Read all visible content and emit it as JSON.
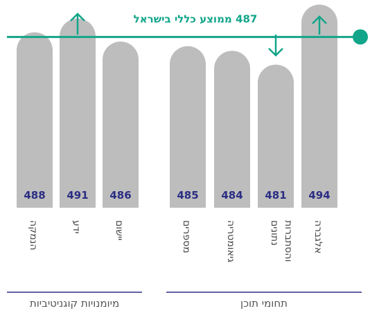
{
  "chart_data": {
    "type": "bar",
    "categories": [
      "הנמקה",
      "ידע",
      "יישום",
      "מספרים",
      "גיאומטריה",
      "נתונים והסתברות",
      "אלגברה"
    ],
    "values": [
      488,
      491,
      486,
      485,
      484,
      481,
      494
    ],
    "color": "#bdbdbd",
    "label_color": "#2b2e83",
    "ylim": [
      450,
      495
    ],
    "reference": {
      "value": 487,
      "label": "487 ממוצע כללי בישראל",
      "color": "#12a58a"
    },
    "groups": [
      {
        "name": "מיומנויות קוגניטיביות"
      },
      {
        "name": "תחומי תוכן"
      }
    ]
  }
}
